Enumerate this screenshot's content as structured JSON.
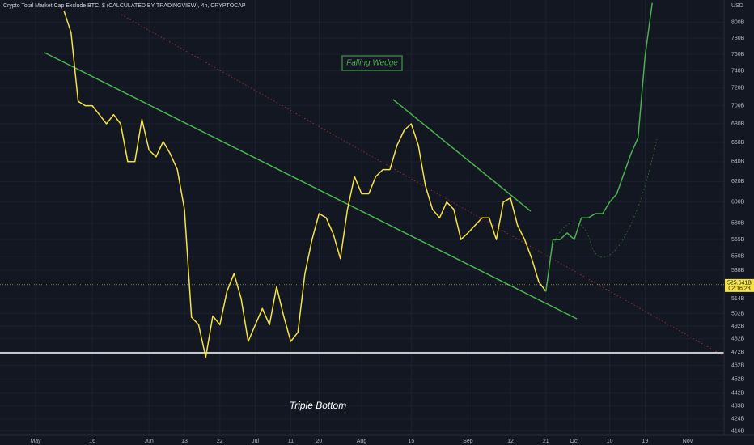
{
  "chart_data": {
    "type": "line",
    "title": "Crypto Total Market Cap Exclude BTC, $ (CALCULATED BY TRADINGVIEW), 4h, CRYPTOCAP",
    "y_axis_label": "USD",
    "log_scale": true,
    "grid": true,
    "annotations": [
      "Falling Wedge",
      "Triple Bottom"
    ],
    "last_price": {
      "value": 525.641,
      "label": "525.641B"
    },
    "countdown": "02:16:28",
    "categories": [
      "May",
      null,
      null,
      null,
      null,
      null,
      null,
      null,
      "16",
      null,
      null,
      null,
      null,
      null,
      null,
      null,
      "Jun",
      null,
      null,
      null,
      null,
      "13",
      null,
      null,
      null,
      null,
      "22",
      null,
      null,
      null,
      null,
      "Jul",
      null,
      null,
      null,
      null,
      "11",
      null,
      null,
      null,
      "20",
      null,
      null,
      null,
      null,
      null,
      "Aug",
      null,
      null,
      null,
      null,
      null,
      null,
      "15",
      null,
      null,
      null,
      null,
      null,
      null,
      null,
      "Sep",
      null,
      null,
      null,
      null,
      null,
      "12",
      null,
      null,
      null,
      null,
      "21",
      null,
      null,
      null,
      "Oct",
      null,
      null,
      null,
      null,
      "10",
      null,
      null,
      null,
      null,
      "19",
      null,
      null,
      null,
      null,
      null,
      "Nov"
    ],
    "series": [
      {
        "name": "Price",
        "color": "#f5e342",
        "values": [
          null,
          null,
          null,
          null,
          815,
          787,
          705,
          700,
          700,
          690,
          680,
          690,
          680,
          640,
          640,
          685,
          652,
          645,
          661,
          648,
          632,
          593,
          499,
          493,
          468,
          500,
          493,
          520,
          535,
          514,
          480,
          493,
          506,
          493,
          524,
          500,
          480,
          487,
          535,
          565,
          589,
          585,
          570,
          548,
          593,
          625,
          608,
          608,
          625,
          632,
          632,
          657,
          673,
          680,
          657,
          616,
          593,
          585,
          600,
          593,
          565,
          571,
          578,
          585,
          585,
          565,
          600,
          604,
          578,
          565,
          548,
          528,
          520,
          null,
          null,
          null,
          null,
          null,
          null,
          null,
          null,
          null,
          null,
          null,
          null,
          null,
          null,
          null,
          null,
          null,
          null,
          null,
          null
        ]
      },
      {
        "name": "Projection",
        "color": "#4caf50",
        "values": [
          null,
          null,
          null,
          null,
          null,
          null,
          null,
          null,
          null,
          null,
          null,
          null,
          null,
          null,
          null,
          null,
          null,
          null,
          null,
          null,
          null,
          null,
          null,
          null,
          null,
          null,
          null,
          null,
          null,
          null,
          null,
          null,
          null,
          null,
          null,
          null,
          null,
          null,
          null,
          null,
          null,
          null,
          null,
          null,
          null,
          null,
          null,
          null,
          null,
          null,
          null,
          null,
          null,
          null,
          null,
          null,
          null,
          null,
          null,
          null,
          null,
          null,
          null,
          null,
          null,
          null,
          null,
          null,
          null,
          null,
          null,
          null,
          520,
          565,
          565,
          571,
          565,
          585,
          585,
          589,
          589,
          600,
          608,
          628,
          648,
          665,
          758,
          825,
          null,
          null,
          null,
          null,
          null
        ]
      }
    ],
    "ylim": [
      412,
      829
    ],
    "yticks": [
      {
        "value": 800,
        "label": "800B"
      },
      {
        "value": 780,
        "label": "780B"
      },
      {
        "value": 760,
        "label": "760B"
      },
      {
        "value": 740,
        "label": "740B"
      },
      {
        "value": 720,
        "label": "720B"
      },
      {
        "value": 700,
        "label": "700B"
      },
      {
        "value": 680,
        "label": "680B"
      },
      {
        "value": 660,
        "label": "660B"
      },
      {
        "value": 640,
        "label": "640B"
      },
      {
        "value": 620,
        "label": "620B"
      },
      {
        "value": 600,
        "label": "600B"
      },
      {
        "value": 580,
        "label": "580B"
      },
      {
        "value": 565,
        "label": "565B"
      },
      {
        "value": 550,
        "label": "550B"
      },
      {
        "value": 538,
        "label": "538B"
      },
      {
        "value": 514,
        "label": "514B"
      },
      {
        "value": 502,
        "label": "502B"
      },
      {
        "value": 492,
        "label": "492B"
      },
      {
        "value": 482,
        "label": "482B"
      },
      {
        "value": 472,
        "label": "472B"
      },
      {
        "value": 462,
        "label": "462B"
      },
      {
        "value": 452,
        "label": "452B"
      },
      {
        "value": 442,
        "label": "442B"
      },
      {
        "value": 433,
        "label": "433B"
      },
      {
        "value": 424,
        "label": "424B"
      },
      {
        "value": 416,
        "label": "416B"
      }
    ]
  }
}
